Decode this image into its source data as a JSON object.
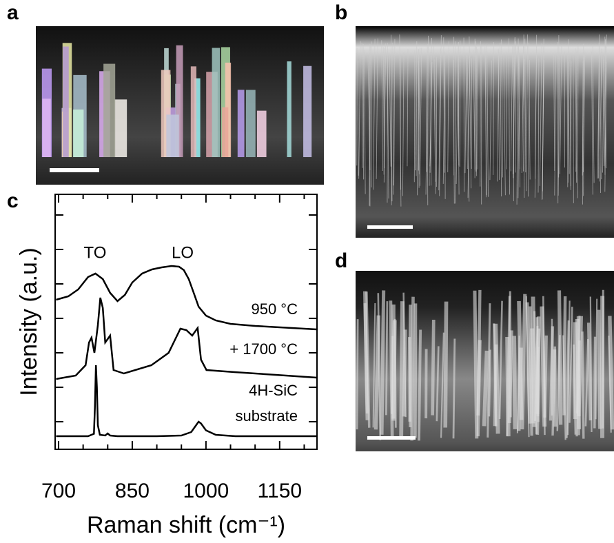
{
  "panels": {
    "a": "a",
    "b": "b",
    "c": "c",
    "d": "d"
  },
  "chart_data": {
    "type": "line",
    "xlabel": "Raman shift (cm⁻¹)",
    "ylabel": "Intensity (a.u.)",
    "xlim": [
      693,
      1226
    ],
    "xticks": [
      700,
      850,
      1000,
      1150
    ],
    "xminorticks": [
      750,
      800,
      900,
      950,
      1050,
      1100,
      1200
    ],
    "ylim": [
      0,
      7.4
    ],
    "ytickmarks": [
      0.8,
      1.8,
      2.8,
      3.8,
      4.8,
      5.8,
      6.8
    ],
    "annotations": [
      "TO",
      "LO",
      "950 °C",
      "+ 1700 °C",
      "4H-SiC",
      "substrate"
    ],
    "series": [
      {
        "color": "#000000",
        "x": [
          695,
          720,
          740,
          760,
          775,
          790,
          805,
          820,
          835,
          850,
          870,
          890,
          910,
          930,
          945,
          955,
          965,
          975,
          985,
          1000,
          1020,
          1050,
          1100,
          1150,
          1200,
          1225
        ],
        "values": [
          4.34,
          4.44,
          4.64,
          5.0,
          5.1,
          4.94,
          4.54,
          4.3,
          4.48,
          4.84,
          5.1,
          5.22,
          5.28,
          5.32,
          5.3,
          5.2,
          4.94,
          4.54,
          4.14,
          3.88,
          3.74,
          3.64,
          3.58,
          3.54,
          3.5,
          3.48
        ]
      },
      {
        "color": "#000000",
        "x": [
          695,
          735,
          755,
          762,
          767,
          773,
          780,
          785,
          790,
          795,
          800,
          805,
          812,
          833,
          889,
          924,
          948,
          960,
          972,
          983,
          990,
          1001,
          1058,
          1142,
          1225
        ],
        "values": [
          2.04,
          2.14,
          2.44,
          3.1,
          3.24,
          2.8,
          3.6,
          4.4,
          4.1,
          3.1,
          3.2,
          3.3,
          2.3,
          2.2,
          2.44,
          2.8,
          3.5,
          3.46,
          3.3,
          3.52,
          2.6,
          2.3,
          2.24,
          2.16,
          2.08
        ]
      },
      {
        "color": "#000000",
        "x": [
          695,
          760,
          772,
          774,
          776,
          778,
          780,
          784,
          795,
          800,
          805,
          820,
          900,
          950,
          970,
          980,
          985,
          990,
          1000,
          1020,
          1060,
          1225
        ],
        "values": [
          0.38,
          0.38,
          0.45,
          1.2,
          2.44,
          1.8,
          0.7,
          0.42,
          0.4,
          0.46,
          0.4,
          0.38,
          0.38,
          0.4,
          0.5,
          0.7,
          0.8,
          0.75,
          0.55,
          0.42,
          0.38,
          0.38
        ]
      }
    ]
  }
}
